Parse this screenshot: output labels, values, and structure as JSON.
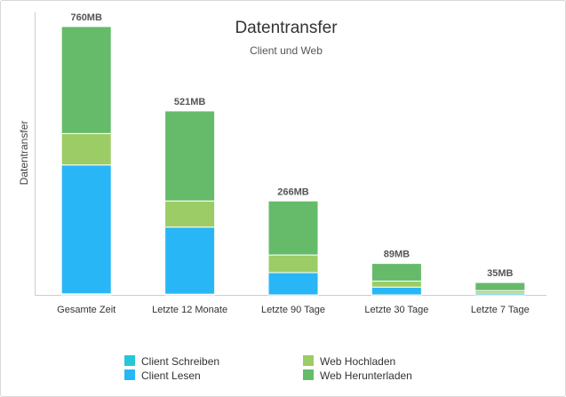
{
  "chart_data": {
    "type": "bar",
    "stacked": true,
    "title": "Datentransfer",
    "subtitle": "Client und Web",
    "ylabel": "Datentransfer",
    "ylim": [
      0,
      800
    ],
    "grid": false,
    "legend_position": "bottom",
    "categories": [
      "Gesamte Zeit",
      "Letzte 12 Monate",
      "Letzte 90 Tage",
      "Letzte 30 Tage",
      "Letzte 7 Tage"
    ],
    "totals": [
      "760MB",
      "521MB",
      "266MB",
      "89MB",
      "35MB"
    ],
    "series": [
      {
        "name": "Client Schreiben",
        "color": "#26c6da",
        "values": [
          3,
          2,
          0,
          0,
          0
        ]
      },
      {
        "name": "Client Lesen",
        "color": "#29b6f6",
        "values": [
          365,
          190,
          63,
          22,
          5
        ]
      },
      {
        "name": "Web Hochladen",
        "color": "#9ccc65",
        "values": [
          89,
          74,
          50,
          17,
          7
        ]
      },
      {
        "name": "Web Herunterladen",
        "color": "#66bb6a",
        "values": [
          303,
          255,
          153,
          50,
          23
        ]
      }
    ]
  }
}
